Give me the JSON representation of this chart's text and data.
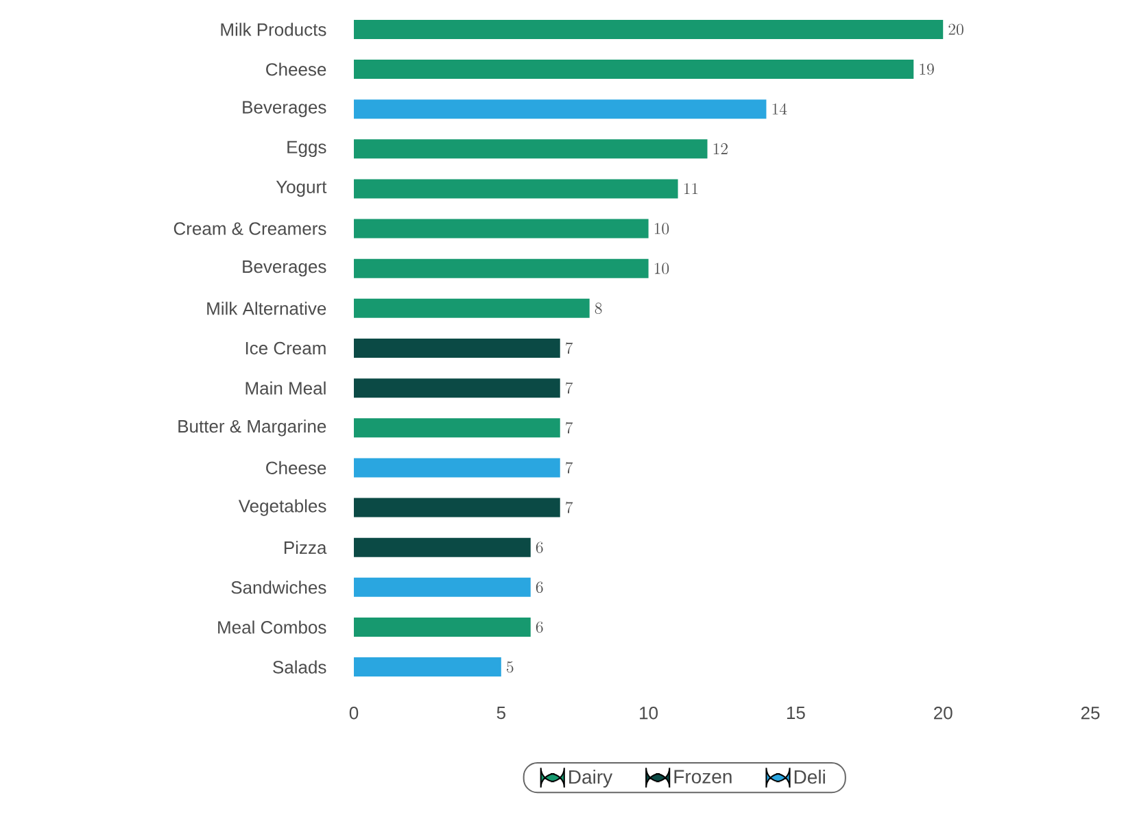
{
  "chart_data": {
    "type": "bar",
    "orientation": "horizontal",
    "categories": [
      "Milk Products",
      "Cheese",
      "Beverages",
      "Eggs",
      "Yogurt",
      "Cream & Creamers",
      "Beverages",
      "Milk Alternative",
      "Ice Cream",
      "Main Meal",
      "Butter & Margarine",
      "Cheese",
      "Vegetables",
      "Pizza",
      "Sandwiches",
      "Meal Combos",
      "Salads"
    ],
    "series": [
      {
        "name": "Dairy",
        "color": "#17996f",
        "values": [
          20,
          19,
          null,
          12,
          11,
          10,
          10,
          8,
          null,
          null,
          7,
          null,
          null,
          null,
          null,
          6,
          null
        ]
      },
      {
        "name": "Frozen",
        "color": "#0b4a45",
        "values": [
          null,
          null,
          null,
          null,
          null,
          null,
          null,
          null,
          7,
          7,
          null,
          null,
          7,
          6,
          null,
          null,
          null
        ]
      },
      {
        "name": "Deli",
        "color": "#2aa6e0",
        "values": [
          null,
          null,
          14,
          null,
          null,
          null,
          null,
          null,
          null,
          null,
          null,
          7,
          null,
          null,
          6,
          null,
          5
        ]
      }
    ],
    "xlim": [
      0,
      25
    ],
    "xticks": [
      0,
      5,
      10,
      15,
      20,
      25
    ],
    "data_labels": true,
    "legend": "bottom",
    "grid": false
  }
}
